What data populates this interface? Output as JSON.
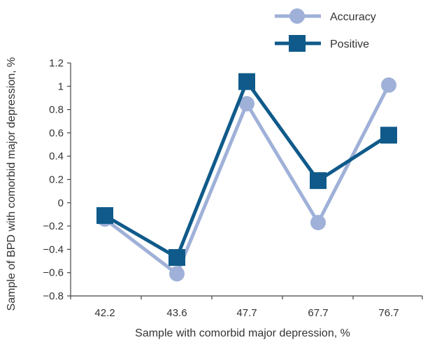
{
  "chart_data": {
    "type": "line",
    "categories": [
      "42.2",
      "43.6",
      "47.7",
      "67.7",
      "76.7"
    ],
    "series": [
      {
        "name": "Accuracy",
        "values": [
          -0.14,
          -0.61,
          0.85,
          -0.17,
          1.01
        ],
        "color": "#9fb1d8",
        "marker": "circle"
      },
      {
        "name": "Positive",
        "values": [
          -0.11,
          -0.47,
          1.04,
          0.19,
          0.58
        ],
        "color": "#0f5a8a",
        "marker": "square"
      }
    ],
    "xlabel": "Sample with comorbid major depression, %",
    "ylabel": "Sample of BPD with comorbid major depression, %",
    "ylim": [
      -0.8,
      1.2
    ],
    "yticks": [
      "1.2",
      "1",
      "0.8",
      "0.6",
      "0.4",
      "0.2",
      "0",
      "−0.2",
      "−0.4",
      "−0.6",
      "−0.8"
    ],
    "legend_position": "top-right",
    "grid": false
  }
}
